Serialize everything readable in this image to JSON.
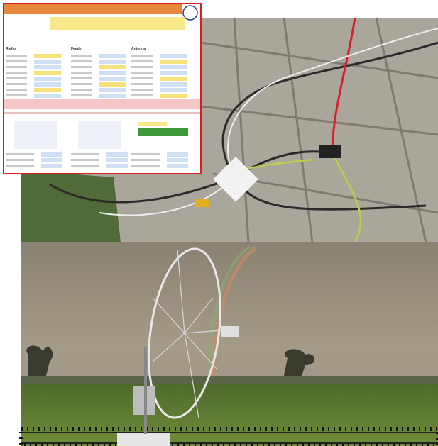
{
  "spreadsheet": {
    "sections": [
      "Radio",
      "Feeder",
      "Antenna"
    ]
  }
}
